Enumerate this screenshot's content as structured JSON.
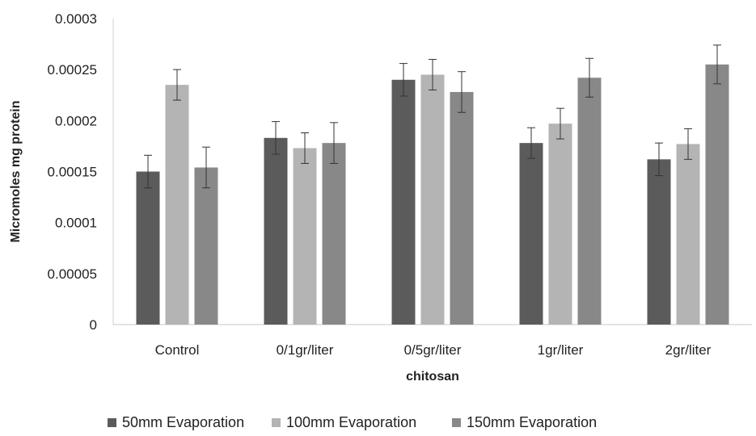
{
  "chart_data": {
    "type": "bar",
    "title": "",
    "xlabel": "chitosan",
    "ylabel": "Micromoles mg protein",
    "ylim": [
      0,
      0.0003
    ],
    "yticks": [
      "0",
      "0.00005",
      "0.0001",
      "0.00015",
      "0.0002",
      "0.00025",
      "0.0003"
    ],
    "categories": [
      "Control",
      "0/1gr/liter",
      "0/5gr/liter",
      "1gr/liter",
      "2gr/liter"
    ],
    "grid": false,
    "legend_position": "bottom",
    "series": [
      {
        "name": "50mm Evaporation",
        "color": "#5b5b5b",
        "values": [
          0.00015,
          0.000183,
          0.00024,
          0.000178,
          0.000162
        ],
        "errors": [
          1.6e-05,
          1.6e-05,
          1.6e-05,
          1.5e-05,
          1.6e-05
        ]
      },
      {
        "name": "100mm Evaporation",
        "color": "#b4b4b4",
        "values": [
          0.000235,
          0.000173,
          0.000245,
          0.000197,
          0.000177
        ],
        "errors": [
          1.5e-05,
          1.5e-05,
          1.5e-05,
          1.5e-05,
          1.5e-05
        ]
      },
      {
        "name": "150mm Evaporation",
        "color": "#888888",
        "values": [
          0.000154,
          0.000178,
          0.000228,
          0.000242,
          0.000255
        ],
        "errors": [
          2e-05,
          2e-05,
          2e-05,
          1.9e-05,
          1.9e-05
        ]
      }
    ]
  }
}
